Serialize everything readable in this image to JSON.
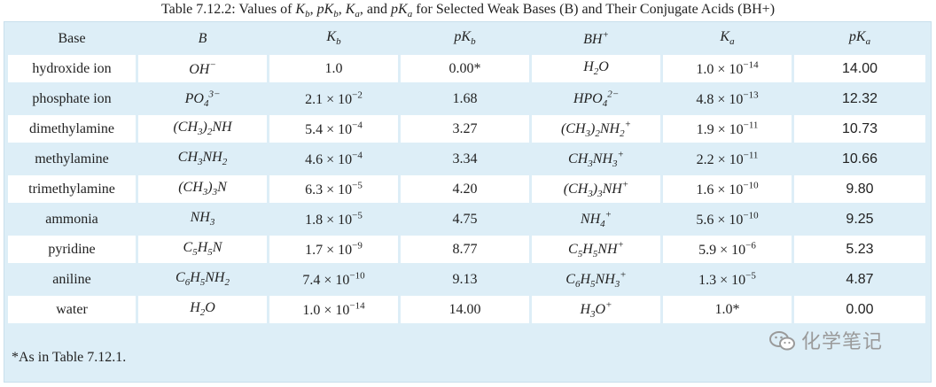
{
  "caption": "Table 7.12.2: Values of K_b, pK_b, K_a, and pK_a for Selected Weak Bases (B) and Their Conjugate Acids (BH+)",
  "headers": [
    "Base",
    "B",
    "K_b",
    "pK_b",
    "BH^+",
    "K_a",
    "pK_a"
  ],
  "rows": [
    {
      "base": "hydroxide ion",
      "formula": "OH^-",
      "kb": "1.0",
      "pkb": "0.00*",
      "conj": "H_2O",
      "ka": "1.0 × 10^-14",
      "pka": "14.00"
    },
    {
      "base": "phosphate ion",
      "formula": "PO_4^3-",
      "kb": "2.1 × 10^-2",
      "pkb": "1.68",
      "conj": "HPO_4^2-",
      "ka": "4.8 × 10^-13",
      "pka": "12.32"
    },
    {
      "base": "dimethylamine",
      "formula": "(CH_3)_2NH",
      "kb": "5.4 × 10^-4",
      "pkb": "3.27",
      "conj": "(CH_3)_2NH_2^+",
      "ka": "1.9 × 10^-11",
      "pka": "10.73"
    },
    {
      "base": "methylamine",
      "formula": "CH_3NH_2",
      "kb": "4.6 × 10^-4",
      "pkb": "3.34",
      "conj": "CH_3NH_3^+",
      "ka": "2.2 × 10^-11",
      "pka": "10.66"
    },
    {
      "base": "trimethylamine",
      "formula": "(CH_3)_3N",
      "kb": "6.3 × 10^-5",
      "pkb": "4.20",
      "conj": "(CH_3)_3NH^+",
      "ka": "1.6 × 10^-10",
      "pka": "9.80"
    },
    {
      "base": "ammonia",
      "formula": "NH_3",
      "kb": "1.8 × 10^-5",
      "pkb": "4.75",
      "conj": "NH_4^+",
      "ka": "5.6 × 10^-10",
      "pka": "9.25"
    },
    {
      "base": "pyridine",
      "formula": "C_5H_5N",
      "kb": "1.7 × 10^-9",
      "pkb": "8.77",
      "conj": "C_5H_5NH^+",
      "ka": "5.9 × 10^-6",
      "pka": "5.23"
    },
    {
      "base": "aniline",
      "formula": "C_6H_5NH_2",
      "kb": "7.4 × 10^-10",
      "pkb": "9.13",
      "conj": "C_6H_5NH_3^+",
      "ka": "1.3 × 10^-5",
      "pka": "4.87"
    },
    {
      "base": "water",
      "formula": "H_2O",
      "kb": "1.0 × 10^-14",
      "pkb": "14.00",
      "conj": "H_3O^+",
      "ka": "1.0*",
      "pka": "0.00"
    }
  ],
  "footnote": "*As in Table 7.12.1.",
  "watermark": "化学笔记",
  "watermark_icon": "wechat-logo-icon",
  "colors": {
    "shaded_row": "#ddeef7",
    "white_row": "#ffffff",
    "text": "#222222"
  }
}
